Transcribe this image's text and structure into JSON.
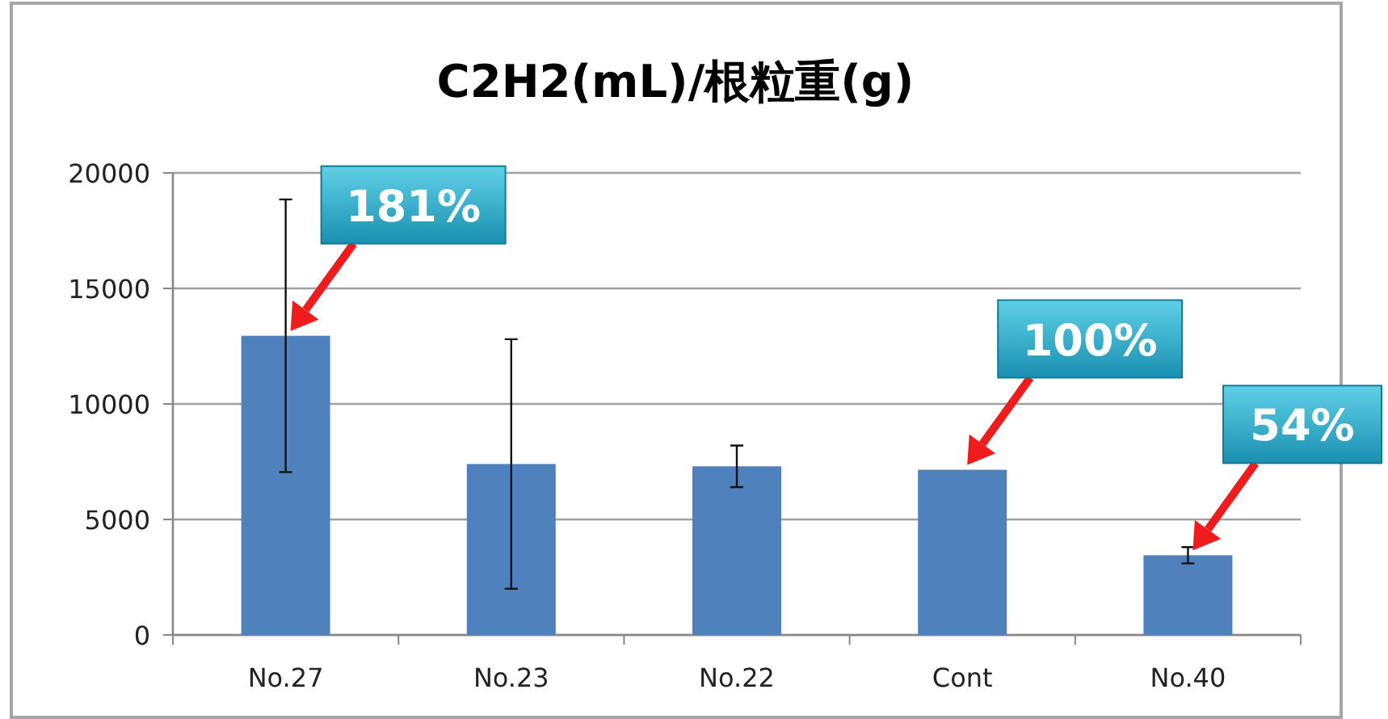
{
  "chart_data": {
    "type": "bar",
    "title": "C2H2(mL)/根粒重(g)",
    "categories": [
      "No.27",
      "No.23",
      "No.22",
      "Cont",
      "No.40"
    ],
    "values": [
      12950,
      7400,
      7300,
      7150,
      3450
    ],
    "errors": [
      5900,
      5400,
      900,
      null,
      350
    ],
    "color": "#4f81bd",
    "ylim": [
      0,
      20000
    ],
    "yticks": [
      0,
      5000,
      10000,
      15000,
      20000
    ],
    "grid": "y",
    "annotations": [
      {
        "text": "181%",
        "x": "No.27",
        "y": 12950
      },
      {
        "text": "100%",
        "x": "Cont",
        "y": 7150
      },
      {
        "text": "54%",
        "x": "No.40",
        "y": 3450
      }
    ]
  }
}
